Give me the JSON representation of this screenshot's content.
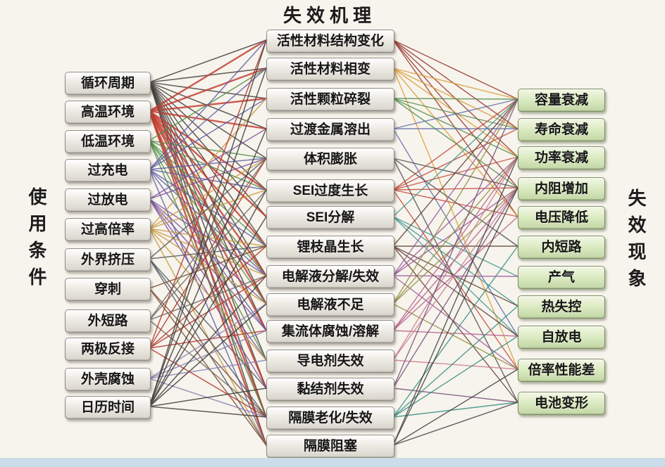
{
  "title": "失效机理",
  "left_label": "使用条件",
  "right_label": "失效现象",
  "colors": {
    "background": "#f7f4ed",
    "gray_node": "#e9e6df",
    "green_node": "#d9e8c2",
    "bottom_strip": "#cbdcea",
    "text": "#161616"
  },
  "columns": {
    "conditions": {
      "items": [
        {
          "label": "循环周期",
          "color": "#3f3b38",
          "mechanisms": [
            0,
            1,
            2,
            3,
            4,
            5,
            6,
            7,
            8,
            9,
            10,
            11,
            12,
            13,
            14
          ]
        },
        {
          "label": "高温环境",
          "color": "#c23b2e",
          "stroke_width": 2.4,
          "mechanisms": [
            0,
            1,
            2,
            3,
            5,
            6,
            7,
            8,
            9,
            10,
            12,
            13,
            14
          ]
        },
        {
          "label": "低温环境",
          "color": "#4e8c46",
          "mechanisms": [
            1,
            4,
            5,
            7,
            8,
            9,
            11,
            13
          ]
        },
        {
          "label": "过充电",
          "color": "#5c5ca8",
          "mechanisms": [
            0,
            1,
            2,
            4,
            5,
            7,
            8,
            10,
            14
          ]
        },
        {
          "label": "过放电",
          "color": "#7a4f9c",
          "mechanisms": [
            3,
            4,
            8,
            9,
            10,
            11,
            12
          ]
        },
        {
          "label": "过高倍率",
          "color": "#c79a3a",
          "mechanisms": [
            2,
            4,
            5,
            7,
            8,
            9,
            11,
            14
          ]
        },
        {
          "label": "外界挤压",
          "color": "#4f5560",
          "mechanisms": [
            4,
            7,
            12,
            13,
            14
          ]
        },
        {
          "label": "穿刺",
          "color": "#7c4a30",
          "mechanisms": [
            7,
            13,
            14
          ]
        },
        {
          "label": "外短路",
          "color": "#6e6a64",
          "mechanisms": [
            4,
            5,
            8,
            13
          ]
        },
        {
          "label": "两极反接",
          "color": "#b03226",
          "mechanisms": [
            0,
            4,
            7,
            8,
            10,
            13
          ]
        },
        {
          "label": "外壳腐蚀",
          "color": "#8a7fb5",
          "mechanisms": [
            9,
            10,
            11,
            13
          ]
        },
        {
          "label": "日历时间",
          "color": "#3c3834",
          "mechanisms": [
            0,
            1,
            3,
            5,
            6,
            8,
            9,
            12,
            13
          ]
        }
      ]
    },
    "mechanisms": {
      "items": [
        {
          "label": "活性材料结构变化",
          "color": "#933028",
          "phenomena": [
            0,
            1,
            2,
            3,
            4
          ]
        },
        {
          "label": "活性材料相变",
          "color": "#d89a30",
          "phenomena": [
            0,
            1,
            2,
            4,
            9
          ]
        },
        {
          "label": "活性颗粒碎裂",
          "color": "#4a8a48",
          "phenomena": [
            0,
            1,
            2,
            3
          ]
        },
        {
          "label": "过渡金属溶出",
          "color": "#5a6aa8",
          "phenomena": [
            0,
            1,
            8
          ]
        },
        {
          "label": "体积膨胀",
          "color": "#4a4a48",
          "phenomena": [
            3,
            5,
            10
          ]
        },
        {
          "label": "SEI过度生长",
          "color": "#c04236",
          "phenomena": [
            0,
            1,
            2,
            3,
            4,
            9
          ]
        },
        {
          "label": "SEI分解",
          "color": "#3f968c",
          "phenomena": [
            0,
            6,
            7,
            8
          ]
        },
        {
          "label": "锂枝晶生长",
          "color": "#5a3a30",
          "phenomena": [
            0,
            5,
            7,
            8,
            10
          ]
        },
        {
          "label": "电解液分解/失效",
          "color": "#9a549a",
          "phenomena": [
            0,
            2,
            3,
            6,
            9
          ]
        },
        {
          "label": "电解液不足",
          "color": "#8f8a3c",
          "phenomena": [
            0,
            2,
            3,
            9
          ]
        },
        {
          "label": "集流体腐蚀/溶解",
          "color": "#b55a88",
          "phenomena": [
            2,
            3,
            4,
            8
          ]
        },
        {
          "label": "导电剂失效",
          "color": "#c4788e",
          "phenomena": [
            2,
            3,
            9
          ]
        },
        {
          "label": "黏结剂失效",
          "color": "#744a78",
          "phenomena": [
            0,
            3,
            10
          ]
        },
        {
          "label": "隔膜老化/失效",
          "color": "#2f8a80",
          "phenomena": [
            5,
            7,
            8,
            10
          ]
        },
        {
          "label": "隔膜阻塞",
          "color": "#3a3a3a",
          "phenomena": [
            2,
            3,
            9,
            10
          ]
        }
      ]
    },
    "phenomena": {
      "items": [
        {
          "label": "容量衰减"
        },
        {
          "label": "寿命衰减"
        },
        {
          "label": "功率衰减"
        },
        {
          "label": "内阻增加"
        },
        {
          "label": "电压降低"
        },
        {
          "label": "内短路"
        },
        {
          "label": "产气"
        },
        {
          "label": "热失控"
        },
        {
          "label": "自放电"
        },
        {
          "label": "倍率性能差"
        },
        {
          "label": "电池变形"
        }
      ]
    }
  }
}
